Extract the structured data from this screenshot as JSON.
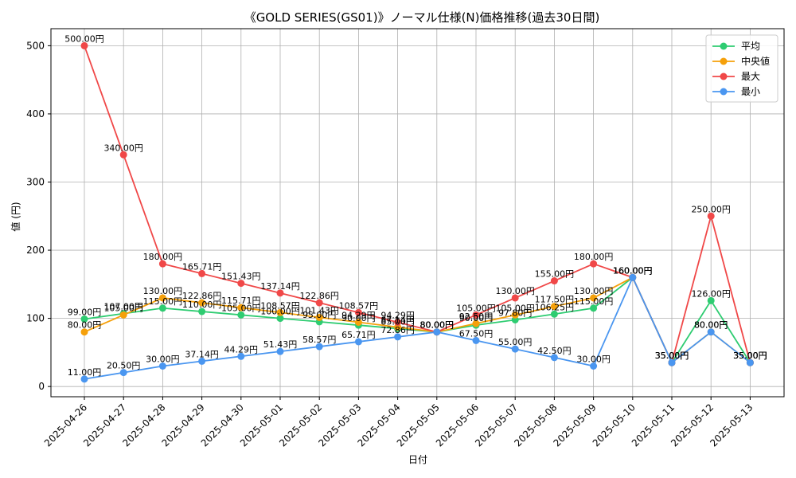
{
  "chart_data": {
    "type": "line",
    "title": "《GOLD SERIES(GS01)》ノーマル仕様(N)価格推移(過去30日間)",
    "xlabel": "日付",
    "ylabel": "値 (円)",
    "ylim": [
      -15,
      525
    ],
    "yticks": [
      0,
      100,
      200,
      300,
      400,
      500
    ],
    "grid": true,
    "legend_position": "top-right",
    "label_suffix": "円",
    "categories": [
      "2025-04-26",
      "2025-04-27",
      "2025-04-28",
      "2025-04-29",
      "2025-04-30",
      "2025-05-01",
      "2025-05-02",
      "2025-05-03",
      "2025-05-04",
      "2025-05-05",
      "2025-05-06",
      "2025-05-07",
      "2025-05-08",
      "2025-05-09",
      "2025-05-10",
      "2025-05-11",
      "2025-05-12",
      "2025-05-13"
    ],
    "series": [
      {
        "name": "平均",
        "color": "#2ecc71",
        "values": [
          99.0,
          107.0,
          115.0,
          110.0,
          105.0,
          100.0,
          95.0,
          90.0,
          85.0,
          80.0,
          90.0,
          97.8,
          106.25,
          115.0,
          160.0,
          35.0,
          126.0,
          35.0
        ]
      },
      {
        "name": "中央値",
        "color": "#f5a00a",
        "values": [
          80.0,
          105.0,
          130.0,
          122.86,
          115.71,
          108.57,
          101.43,
          94.29,
          87.14,
          80.0,
          92.5,
          105.0,
          117.5,
          130.0,
          160.0,
          35.0,
          80.0,
          35.0
        ]
      },
      {
        "name": "最大",
        "color": "#f04848",
        "values": [
          500.0,
          340.0,
          180.0,
          165.71,
          151.43,
          137.14,
          122.86,
          108.57,
          94.29,
          80.0,
          105.0,
          130.0,
          155.0,
          180.0,
          160.0,
          35.0,
          250.0,
          35.0
        ]
      },
      {
        "name": "最小",
        "color": "#4a96f0",
        "values": [
          11.0,
          20.5,
          30.0,
          37.14,
          44.29,
          51.43,
          58.57,
          65.71,
          72.86,
          80.0,
          67.5,
          55.0,
          42.5,
          30.0,
          160.0,
          35.0,
          80.0,
          35.0
        ]
      }
    ]
  }
}
